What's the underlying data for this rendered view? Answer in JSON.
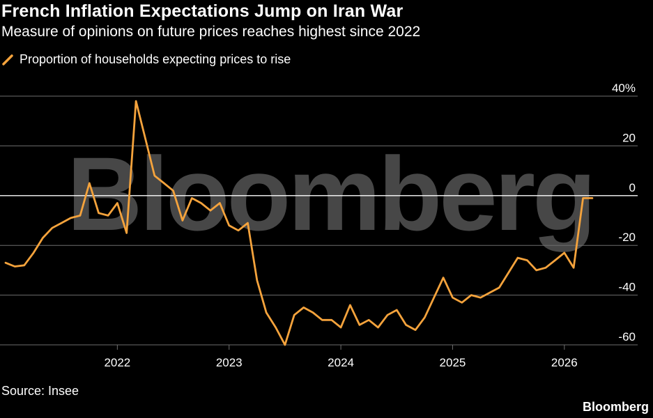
{
  "chart_data": {
    "type": "line",
    "title": "French Inflation Expectations Jump on Iran War",
    "subtitle": "Measure of opinions on future prices reaches highest since 2022",
    "legend": "Proportion of households expecting prices to rise",
    "series": [
      {
        "name": "Proportion of households expecting prices to rise",
        "color": "#f5a33c",
        "x": [
          2021.0,
          2021.083,
          2021.167,
          2021.25,
          2021.333,
          2021.417,
          2021.5,
          2021.583,
          2021.667,
          2021.75,
          2021.833,
          2021.917,
          2022.0,
          2022.083,
          2022.167,
          2022.25,
          2022.333,
          2022.417,
          2022.5,
          2022.583,
          2022.667,
          2022.75,
          2022.833,
          2022.917,
          2023.0,
          2023.083,
          2023.167,
          2023.25,
          2023.333,
          2023.417,
          2023.5,
          2023.583,
          2023.667,
          2023.75,
          2023.833,
          2023.917,
          2024.0,
          2024.083,
          2024.167,
          2024.25,
          2024.333,
          2024.417,
          2024.5,
          2024.583,
          2024.667,
          2024.75,
          2024.833,
          2024.917,
          2025.0,
          2025.083,
          2025.167,
          2025.25,
          2025.333,
          2025.417,
          2025.5,
          2025.583,
          2025.667,
          2025.75,
          2025.833,
          2025.917,
          2026.0,
          2026.083,
          2026.167,
          2026.25
        ],
        "values": [
          -27,
          -28.5,
          -28,
          -23,
          -17,
          -13,
          -11,
          -9,
          -8,
          5,
          -7,
          -8,
          -3,
          -15,
          38,
          23,
          8,
          5,
          2,
          -10,
          -1,
          -3,
          -6,
          -3,
          -12,
          -14,
          -11,
          -34,
          -47,
          -53,
          -60,
          -48,
          -45,
          -47,
          -50,
          -50,
          -53,
          -44,
          -52,
          -50,
          -53,
          -48,
          -46,
          -52,
          -54,
          -49,
          -41,
          -33,
          -41,
          -43,
          -40,
          -41,
          -39,
          -37,
          -31,
          -25,
          -26,
          -30,
          -29,
          -26,
          -23,
          -29,
          -1,
          -1
        ]
      }
    ],
    "x_ticks": [
      "2022",
      "2023",
      "2024",
      "2025",
      "2026"
    ],
    "x_tick_values": [
      2022,
      2023,
      2024,
      2025,
      2026
    ],
    "xlim": [
      2021.0,
      2026.5
    ],
    "y_ticks": [
      40,
      20,
      0,
      -20,
      -40,
      -60
    ],
    "y_tick_labels": [
      "40%",
      "20",
      "0",
      "-20",
      "-40",
      "-60"
    ],
    "ylim": [
      -60,
      40
    ],
    "xlabel": "",
    "ylabel": "",
    "grid": true,
    "legend_position": "top-left"
  },
  "source": "Source: Insee",
  "watermark": "Bloomberg",
  "brand": "Bloomberg",
  "colors": {
    "background": "#000000",
    "line": "#f5a33c",
    "grid": "#6e6e6e",
    "zero_line": "#ffffff",
    "text": "#ffffff"
  }
}
